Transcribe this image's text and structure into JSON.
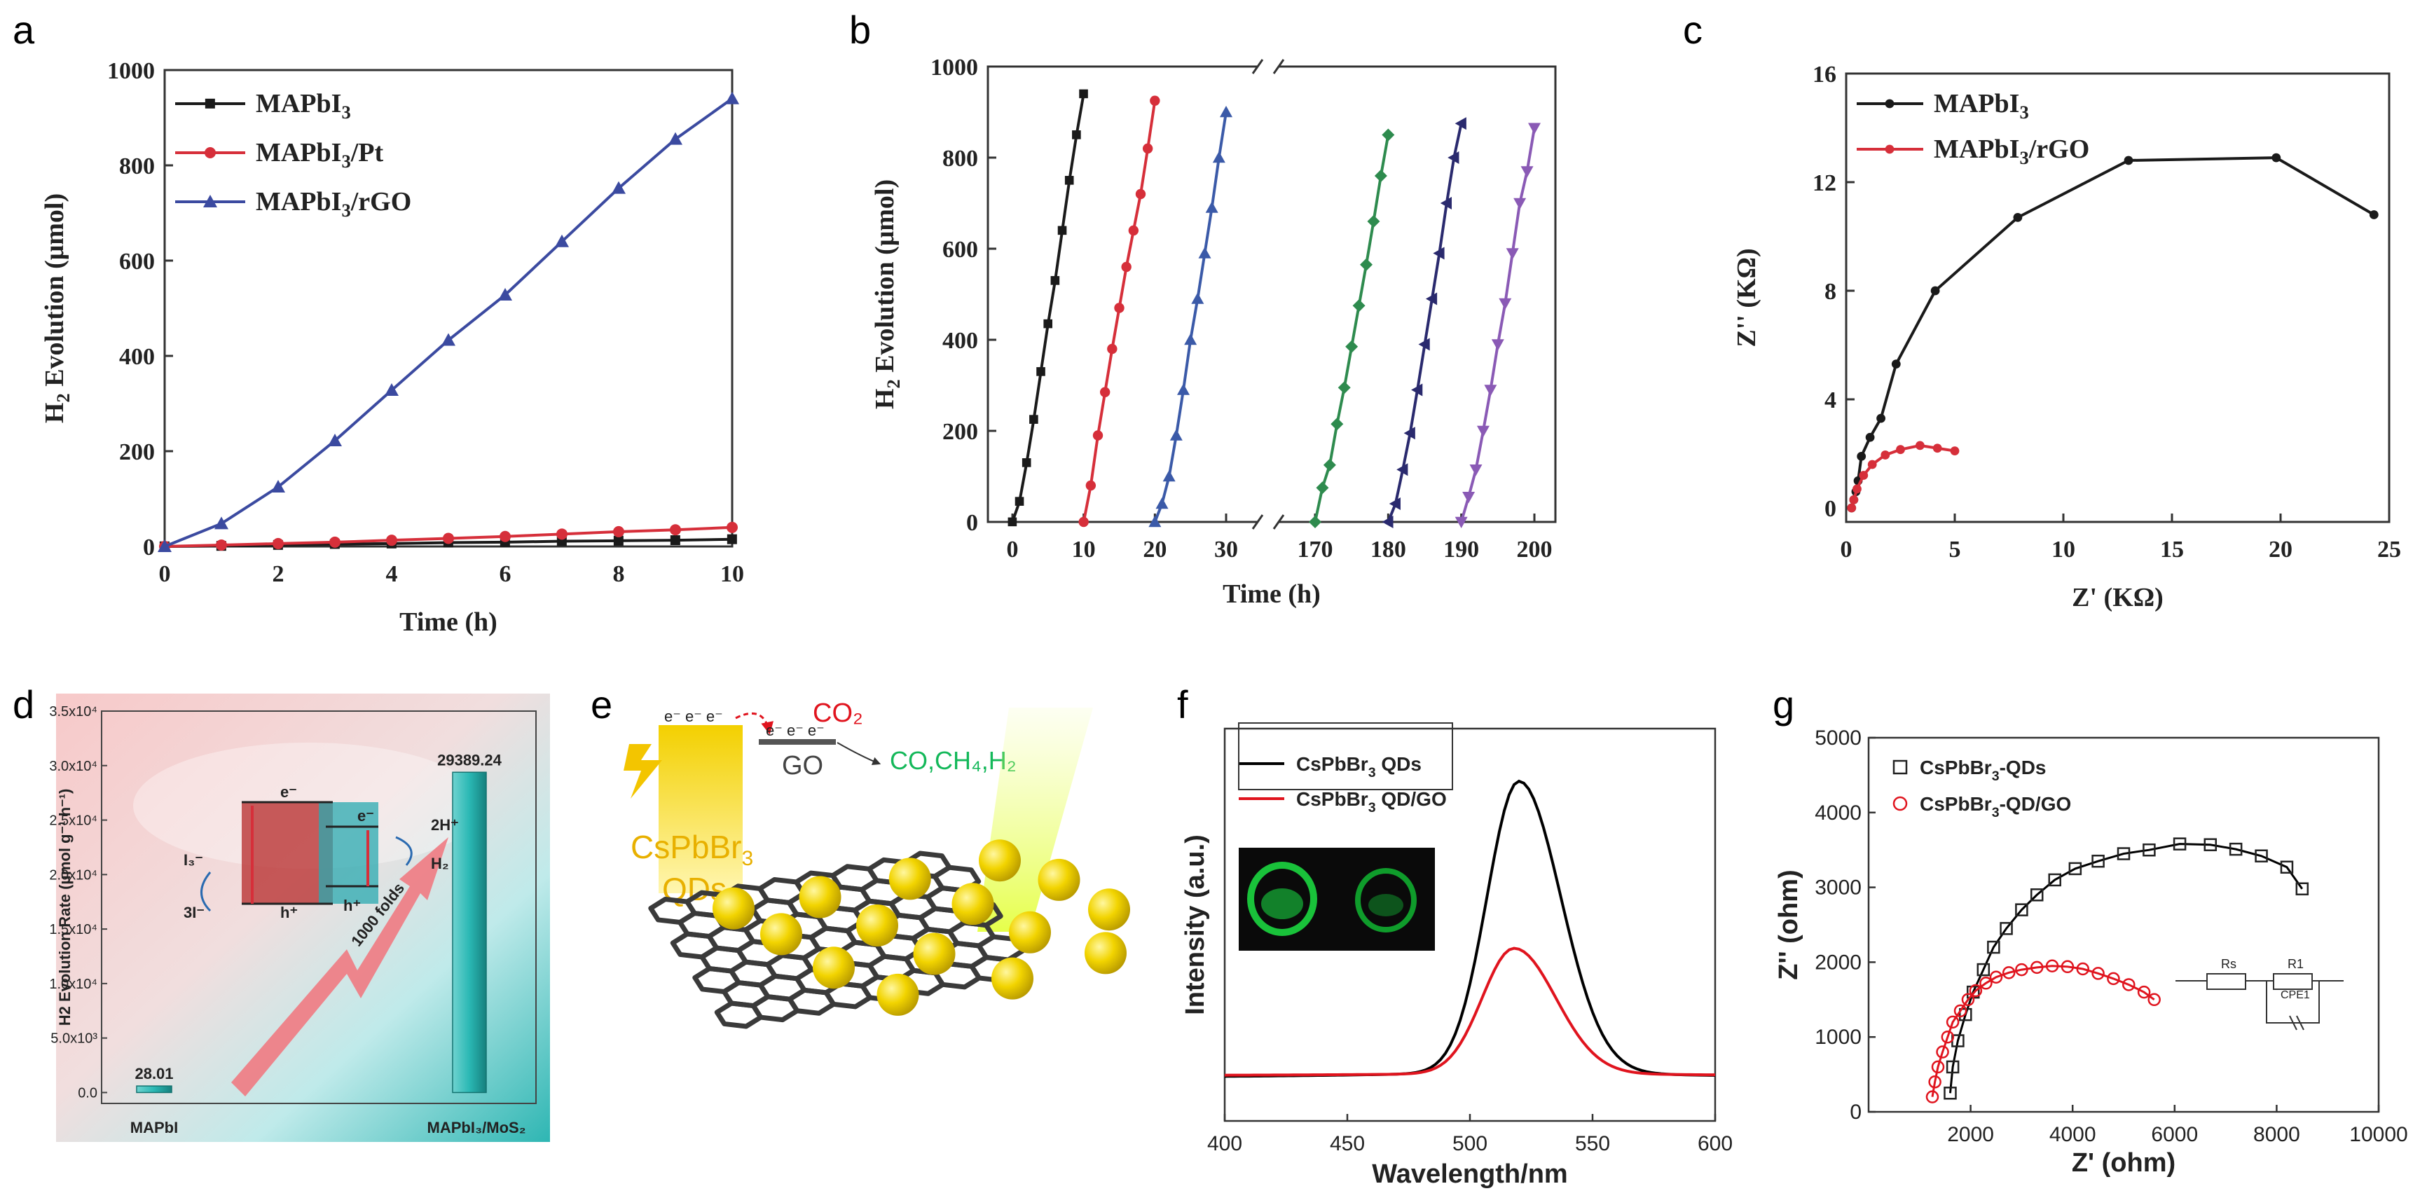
{
  "panel_labels": [
    "a",
    "b",
    "c",
    "d",
    "e",
    "f",
    "g"
  ],
  "chart_data": [
    {
      "id": "a",
      "type": "line",
      "xlabel": "Time (h)",
      "ylabel": "H2 Evolution (μmol)",
      "xlim": [
        0,
        10
      ],
      "ylim": [
        0,
        1000
      ],
      "xticks": [
        0,
        2,
        4,
        6,
        8,
        10
      ],
      "yticks": [
        0,
        200,
        400,
        600,
        800,
        1000
      ],
      "x": [
        0,
        1,
        2,
        3,
        4,
        5,
        6,
        7,
        8,
        9,
        10
      ],
      "series": [
        {
          "name": "MAPbI3",
          "legend": "MAPbI",
          "sub": "3",
          "color": "#1a1a1a",
          "marker": "square",
          "values": [
            0,
            1,
            3,
            5,
            6,
            8,
            9,
            11,
            12,
            13,
            15
          ]
        },
        {
          "name": "MAPbI3/Pt",
          "legend": "MAPbI",
          "sub": "3",
          "suffix": "/Pt",
          "color": "#d62f3a",
          "marker": "circle",
          "values": [
            0,
            3,
            6,
            9,
            13,
            17,
            21,
            26,
            31,
            35,
            40
          ]
        },
        {
          "name": "MAPbI3/rGO",
          "legend": "MAPbI",
          "sub": "3",
          "suffix": "/rGO",
          "color": "#3b4aa0",
          "marker": "triangle",
          "values": [
            0,
            48,
            125,
            222,
            328,
            433,
            528,
            640,
            752,
            855,
            940
          ]
        }
      ]
    },
    {
      "id": "b",
      "type": "line",
      "xlabel": "Time (h)",
      "ylabel": "H2 Evolution (μmol)",
      "ylim": [
        0,
        1000
      ],
      "yticks": [
        0,
        200,
        400,
        600,
        800,
        1000
      ],
      "xticks_left": [
        0,
        10,
        20,
        30
      ],
      "xticks_right": [
        170,
        180,
        190,
        200
      ],
      "series": [
        {
          "color": "#1a1a1a",
          "marker": "square",
          "x": [
            0,
            1,
            2,
            3,
            4,
            5,
            6,
            7,
            8,
            9,
            10
          ],
          "values": [
            0,
            45,
            130,
            225,
            330,
            435,
            530,
            640,
            750,
            850,
            940
          ]
        },
        {
          "color": "#d62f3a",
          "marker": "circle",
          "x": [
            10,
            11,
            12,
            13,
            14,
            15,
            16,
            17,
            18,
            19,
            20
          ],
          "values": [
            0,
            80,
            190,
            285,
            380,
            470,
            560,
            640,
            720,
            820,
            925
          ]
        },
        {
          "color": "#3b5aa8",
          "marker": "triangle",
          "x": [
            20,
            21,
            22,
            23,
            24,
            25,
            26,
            27,
            28,
            29,
            30
          ],
          "values": [
            0,
            40,
            100,
            190,
            290,
            400,
            490,
            590,
            690,
            800,
            900
          ]
        },
        {
          "color": "#2e8b4e",
          "marker": "diamond",
          "x": [
            170,
            171,
            172,
            173,
            174,
            175,
            176,
            177,
            178,
            179,
            180
          ],
          "values": [
            0,
            75,
            125,
            215,
            295,
            385,
            475,
            565,
            660,
            760,
            850
          ]
        },
        {
          "color": "#2a2a6e",
          "marker": "triangle-left",
          "x": [
            180,
            181,
            182,
            183,
            184,
            185,
            186,
            187,
            188,
            189,
            190
          ],
          "values": [
            0,
            40,
            115,
            195,
            290,
            390,
            490,
            590,
            700,
            800,
            875
          ]
        },
        {
          "color": "#8a5ab5",
          "marker": "triangle-down",
          "x": [
            190,
            191,
            192,
            193,
            194,
            195,
            196,
            197,
            198,
            199,
            200
          ],
          "values": [
            0,
            55,
            115,
            200,
            290,
            390,
            480,
            590,
            700,
            770,
            865
          ]
        }
      ]
    },
    {
      "id": "c",
      "type": "line",
      "xlabel": "Z' (KΩ)",
      "ylabel": "Z'' (KΩ)",
      "xlim": [
        0,
        25
      ],
      "ylim": [
        -0.5,
        16
      ],
      "xticks": [
        0,
        5,
        10,
        15,
        20,
        25
      ],
      "yticks": [
        0,
        4,
        8,
        12,
        16
      ],
      "series": [
        {
          "name": "MAPbI3",
          "legend": "MAPbI",
          "sub": "3",
          "color": "#1a1a1a",
          "marker": "circle",
          "x": [
            0.25,
            0.35,
            0.45,
            0.55,
            0.7,
            1.1,
            1.6,
            2.3,
            4.1,
            7.9,
            13.0,
            19.8,
            24.3
          ],
          "values": [
            0,
            0.3,
            0.6,
            1.0,
            1.9,
            2.6,
            3.3,
            5.3,
            8.0,
            10.7,
            12.8,
            12.9,
            10.8
          ]
        },
        {
          "name": "MAPbI3/rGO",
          "legend": "MAPbI",
          "sub": "3",
          "suffix": "/rGO",
          "color": "#d62f3a",
          "marker": "circle",
          "x": [
            0.25,
            0.35,
            0.5,
            0.8,
            1.2,
            1.8,
            2.5,
            3.4,
            4.2,
            5.0
          ],
          "values": [
            0,
            0.3,
            0.7,
            1.2,
            1.6,
            1.95,
            2.15,
            2.3,
            2.2,
            2.1
          ]
        }
      ]
    },
    {
      "id": "d",
      "type": "bar",
      "ylabel": "H2 Evolution Rate (μmol g⁻¹ h⁻¹)",
      "categories": [
        "MAPbI3",
        "MAPbI3/MoS2"
      ],
      "category_labels": [
        "MAPbI",
        "MAPbI₃/MoS₂"
      ],
      "values": [
        28.01,
        29389.24
      ],
      "value_labels": [
        "28.01",
        "29389.24"
      ],
      "ylim": [
        -1000,
        35000
      ],
      "ytick_labels": [
        "0.0",
        "5.0x10³",
        "1.0x10⁴",
        "1.5x10⁴",
        "2.0x10⁴",
        "2.5x10⁴",
        "3.0x10⁴",
        "3.5x10⁴"
      ],
      "yticks": [
        0,
        5000,
        10000,
        15000,
        20000,
        25000,
        30000,
        35000
      ],
      "annotation": "1000 folds",
      "inset_labels": [
        "I₃⁻",
        "3I⁻",
        "2H⁺",
        "H₂",
        "e⁻",
        "e⁻",
        "h⁺",
        "h⁺"
      ]
    },
    {
      "id": "f",
      "type": "line",
      "xlabel": "Wavelength/nm",
      "ylabel": "Intensity (a.u.)",
      "xlim": [
        400,
        600
      ],
      "xticks": [
        400,
        450,
        500,
        550,
        600
      ],
      "series": [
        {
          "name": "CsPbBr3 QDs",
          "legend": "CsPbBr",
          "sub": "3",
          "suffix": " QDs",
          "color": "#000000",
          "peak": 520,
          "height": 1.0
        },
        {
          "name": "CsPbBr3 QD/GO",
          "legend": "CsPbBr",
          "sub": "3",
          "suffix": " QD/GO",
          "color": "#e0141e",
          "peak": 518,
          "height": 0.43
        }
      ]
    },
    {
      "id": "g",
      "type": "scatter",
      "xlabel": "Z' (ohm)",
      "ylabel": "Z'' (ohm)",
      "xlim": [
        0,
        10000
      ],
      "ylim": [
        0,
        5000
      ],
      "xticks": [
        2000,
        4000,
        6000,
        8000,
        10000
      ],
      "yticks": [
        0,
        1000,
        2000,
        3000,
        4000,
        5000
      ],
      "series": [
        {
          "name": "CsPbBr3-QDs",
          "legend": "CsPbBr",
          "sub": "3",
          "suffix": "-QDs",
          "color": "#222222",
          "marker": "open-square",
          "x": [
            1600,
            1650,
            1750,
            1900,
            2050,
            2250,
            2450,
            2700,
            3000,
            3300,
            3650,
            4050,
            4500,
            5000,
            5500,
            6100,
            6700,
            7200,
            7700,
            8200,
            8500
          ],
          "values": [
            250,
            600,
            950,
            1300,
            1600,
            1900,
            2200,
            2450,
            2700,
            2900,
            3100,
            3250,
            3350,
            3450,
            3500,
            3580,
            3570,
            3510,
            3420,
            3270,
            2980
          ]
        },
        {
          "name": "CsPbBr3-QD/GO",
          "legend": "CsPbBr",
          "sub": "3",
          "suffix": "-QD/GO",
          "color": "#e0141e",
          "marker": "open-circle",
          "x": [
            1250,
            1300,
            1360,
            1450,
            1550,
            1650,
            1800,
            1950,
            2100,
            2300,
            2500,
            2750,
            3000,
            3300,
            3600,
            3900,
            4200,
            4500,
            4800,
            5100,
            5400,
            5600
          ],
          "values": [
            200,
            400,
            600,
            800,
            1000,
            1200,
            1350,
            1500,
            1620,
            1720,
            1800,
            1860,
            1900,
            1930,
            1950,
            1940,
            1910,
            1850,
            1780,
            1700,
            1600,
            1500
          ]
        }
      ],
      "fit_color": "#000000",
      "circuit_labels": [
        "Rs",
        "R1",
        "CPE1"
      ]
    }
  ],
  "scheme_e": {
    "electrons": "e⁻ e⁻ e⁻",
    "electrons2": "e⁻ e⁻ e⁻",
    "co2": "CO₂",
    "go": "GO",
    "products": "CO,CH₄,H₂",
    "material": "CsPbBr",
    "material_sub": "3",
    "material2": "QDs"
  },
  "colors": {
    "black": "#1a1a1a",
    "red": "#d62f3a",
    "blue": "#3b4aa0",
    "teal": "#2bbcb8",
    "yellow": "#f0d000"
  }
}
